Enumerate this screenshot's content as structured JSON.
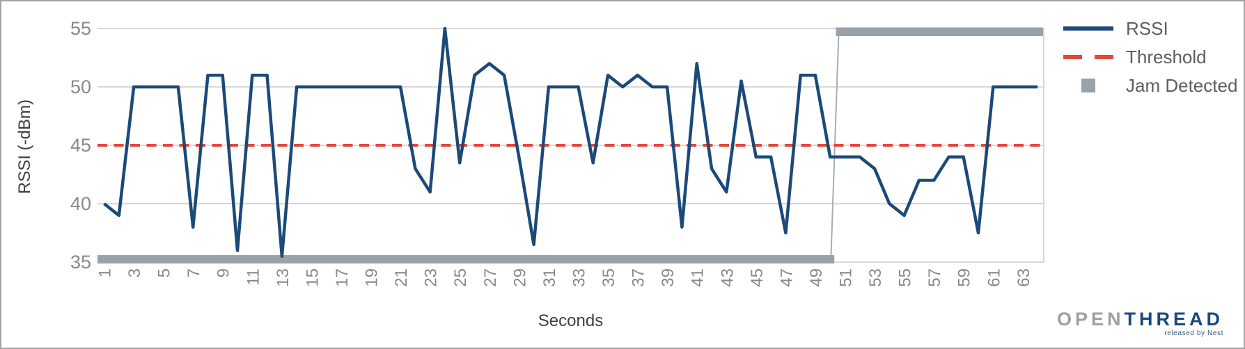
{
  "chart_data": {
    "type": "line",
    "title": "",
    "xlabel": "Seconds",
    "ylabel": "RSSI (-dBm)",
    "xlim": [
      1,
      64
    ],
    "ylim": [
      35,
      55
    ],
    "grid": true,
    "legend_position": "right",
    "x": [
      1,
      2,
      3,
      4,
      5,
      6,
      7,
      8,
      9,
      10,
      11,
      12,
      13,
      14,
      15,
      16,
      17,
      18,
      19,
      20,
      21,
      22,
      23,
      24,
      25,
      26,
      27,
      28,
      29,
      30,
      31,
      32,
      33,
      34,
      35,
      36,
      37,
      38,
      39,
      40,
      41,
      42,
      43,
      44,
      45,
      46,
      47,
      48,
      49,
      50,
      51,
      52,
      53,
      54,
      55,
      56,
      57,
      58,
      59,
      60,
      61,
      62,
      63,
      64
    ],
    "series": [
      {
        "name": "RSSI",
        "values": [
          40,
          39,
          50,
          50,
          50,
          50,
          38,
          51,
          51,
          36,
          51,
          51,
          35.5,
          50,
          50,
          50,
          50,
          50,
          50,
          50,
          50,
          43,
          41,
          55,
          43.5,
          51,
          52,
          51,
          44,
          36.5,
          50,
          50,
          50,
          43.5,
          51,
          50,
          51,
          50,
          50,
          38,
          52,
          43,
          41,
          50.5,
          44,
          44,
          37.5,
          51,
          51,
          44,
          44,
          44,
          43,
          40,
          39,
          42,
          42,
          44,
          44,
          37.5,
          50,
          50,
          50,
          50
        ]
      },
      {
        "name": "Threshold",
        "value": 45
      },
      {
        "name": "Jam Detected",
        "off_value": 35,
        "on_value": 55,
        "on_from_x": 51,
        "values": [
          35,
          35,
          35,
          35,
          35,
          35,
          35,
          35,
          35,
          35,
          35,
          35,
          35,
          35,
          35,
          35,
          35,
          35,
          35,
          35,
          35,
          35,
          35,
          35,
          35,
          35,
          35,
          35,
          35,
          35,
          35,
          35,
          35,
          35,
          35,
          35,
          35,
          35,
          35,
          35,
          35,
          35,
          35,
          35,
          35,
          35,
          35,
          35,
          35,
          35,
          55,
          55,
          55,
          55,
          55,
          55,
          55,
          55,
          55,
          55,
          55,
          55,
          55,
          55
        ]
      }
    ],
    "yticks": [
      55,
      50,
      45,
      40,
      35
    ],
    "xticks": [
      1,
      3,
      5,
      7,
      9,
      11,
      13,
      15,
      17,
      19,
      21,
      23,
      25,
      27,
      29,
      31,
      33,
      35,
      37,
      39,
      41,
      43,
      45,
      47,
      49,
      51,
      53,
      55,
      57,
      59,
      61,
      63
    ]
  },
  "axes": {
    "x_title": "Seconds",
    "y_title": "RSSI (-dBm)"
  },
  "legend": {
    "items": [
      {
        "label": "RSSI",
        "swatch": "blue-line"
      },
      {
        "label": "Threshold",
        "swatch": "red-dashed-line"
      },
      {
        "label": "Jam Detected",
        "swatch": "gray-square"
      }
    ]
  },
  "logo": {
    "part1": "OPEN",
    "part2": "THREAD",
    "tagline": "released by Nest"
  },
  "colors": {
    "rssi_line": "#1b4a78",
    "threshold_line": "#e2483d",
    "jam_bar": "#99a2a9",
    "jam_connector": "#a7aeb3",
    "gridline": "#cccccc",
    "tick_text": "#87898c",
    "axis_title_text": "#3c4043",
    "legend_text": "#5b5e61",
    "logo_gray": "#9aa0a6",
    "logo_navy": "#174a7c",
    "background": "#ffffff"
  }
}
